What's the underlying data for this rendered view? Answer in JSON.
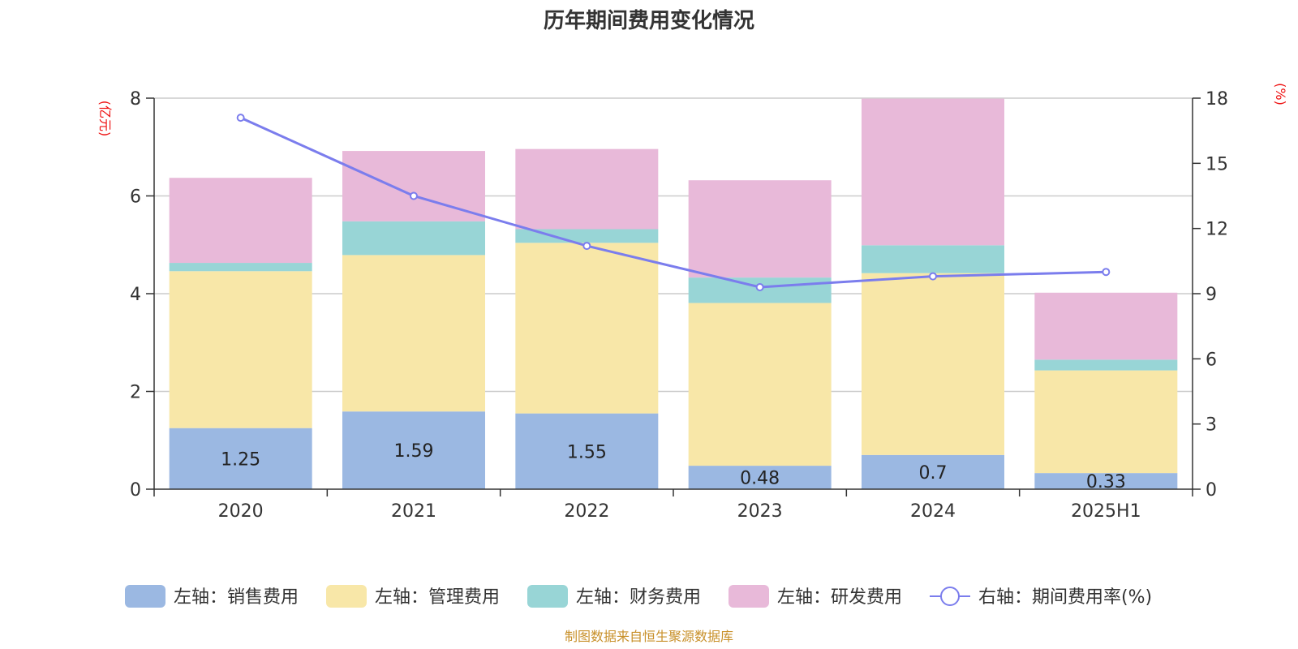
{
  "chart_data": {
    "type": "bar",
    "stacked": true,
    "title": "历年期间费用变化情况",
    "categories": [
      "2020",
      "2021",
      "2022",
      "2023",
      "2024",
      "2025H1"
    ],
    "y_left": {
      "unit_label": "(亿元)",
      "ylim": [
        0,
        8
      ],
      "ticks": [
        "0",
        "2",
        "4",
        "6",
        "8"
      ]
    },
    "y_right": {
      "unit_label": "(%)",
      "ylim": [
        0,
        18
      ],
      "ticks": [
        "0",
        "3",
        "6",
        "9",
        "12",
        "15",
        "18"
      ]
    },
    "series": [
      {
        "name": "左轴：销售费用",
        "axis": "left",
        "type": "bar",
        "color": "#9bb8e2",
        "values": [
          1.25,
          1.59,
          1.55,
          0.48,
          0.7,
          0.33
        ],
        "labels": [
          "1.25",
          "1.59",
          "1.55",
          "0.48",
          "0.7",
          "0.33"
        ]
      },
      {
        "name": "左轴：管理费用",
        "axis": "left",
        "type": "bar",
        "color": "#f8e7a8",
        "values": [
          3.21,
          3.2,
          3.49,
          3.33,
          3.72,
          2.1
        ]
      },
      {
        "name": "左轴：财务费用",
        "axis": "left",
        "type": "bar",
        "color": "#98d5d6",
        "values": [
          0.17,
          0.69,
          0.28,
          0.52,
          0.57,
          0.22
        ]
      },
      {
        "name": "左轴：研发费用",
        "axis": "left",
        "type": "bar",
        "color": "#e8b9d9",
        "values": [
          1.74,
          1.44,
          1.64,
          1.99,
          3.0,
          1.37
        ]
      },
      {
        "name": "右轴：期间费用率(%)",
        "axis": "right",
        "type": "line",
        "color": "#7b7ded",
        "values": [
          17.1,
          13.5,
          11.2,
          9.3,
          9.8,
          10.0
        ]
      }
    ],
    "grid": true,
    "legend_position": "bottom"
  },
  "source_note": "制图数据来自恒生聚源数据库"
}
